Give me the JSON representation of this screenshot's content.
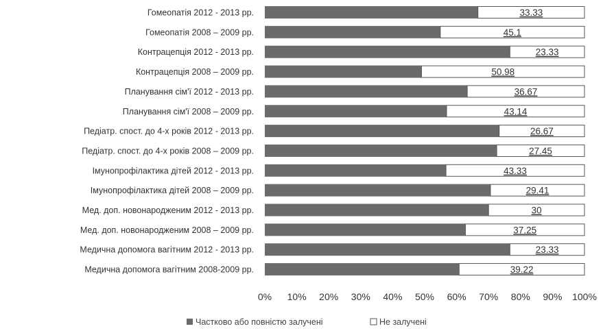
{
  "chart_data": {
    "type": "bar",
    "orientation": "horizontal",
    "stacked": "percent",
    "categories": [
      "Гомеопатія 2012 - 2013 рр.",
      "Гомеопатія  2008 – 2009 рр.",
      "Контрацепція 2012 - 2013 рр.",
      "Контрацепція  2008 – 2009 рр.",
      "Планування сім'ї 2012 - 2013 рр.",
      "Планування сім'ї  2008 – 2009 рр.",
      "Педіатр. спост.  до 4-х років 2012 - 2013 рр.",
      "Педіатр. спост. до 4-х років  2008 – 2009 рр.",
      "Імунопрофілактика дітей 2012 - 2013 рр.",
      "Імунопрофілактика дітей  2008 – 2009 рр.",
      "Мед. доп. новонародженим 2012 - 2013 рр.",
      "Мед. доп. новонародженим  2008 – 2009 рр.",
      "Медична допомога вагітним 2012 - 2013 рр.",
      "Медична допомога вагітним  2008-2009 рр."
    ],
    "series": [
      {
        "name": "Частково або повністю залучені",
        "values": [
          66.67,
          54.9,
          76.67,
          49.02,
          63.33,
          56.86,
          73.33,
          72.55,
          56.67,
          70.59,
          70,
          62.75,
          76.67,
          60.78
        ]
      },
      {
        "name": "Не залучені",
        "values": [
          33.33,
          45.1,
          23.33,
          50.98,
          36.67,
          43.14,
          26.67,
          27.45,
          43.33,
          29.41,
          30,
          37.25,
          23.33,
          39.22
        ]
      }
    ],
    "data_labels": [
      "33.33",
      "45.1",
      "23.33",
      "50.98",
      "36.67",
      "43.14",
      "26.67",
      "27.45",
      "43.33",
      "29.41",
      "30",
      "37.25",
      "23.33",
      "39.22"
    ],
    "x_ticks": [
      "0%",
      "10%",
      "20%",
      "30%",
      "40%",
      "50%",
      "60%",
      "70%",
      "80%",
      "90%",
      "100%"
    ],
    "xlim": [
      0,
      100
    ],
    "grid": false,
    "legend": "bottom",
    "colors": {
      "involved": "#6b6b6b",
      "not_involved": "#ffffff",
      "bar_border": "#555555",
      "text": "#333333"
    }
  }
}
